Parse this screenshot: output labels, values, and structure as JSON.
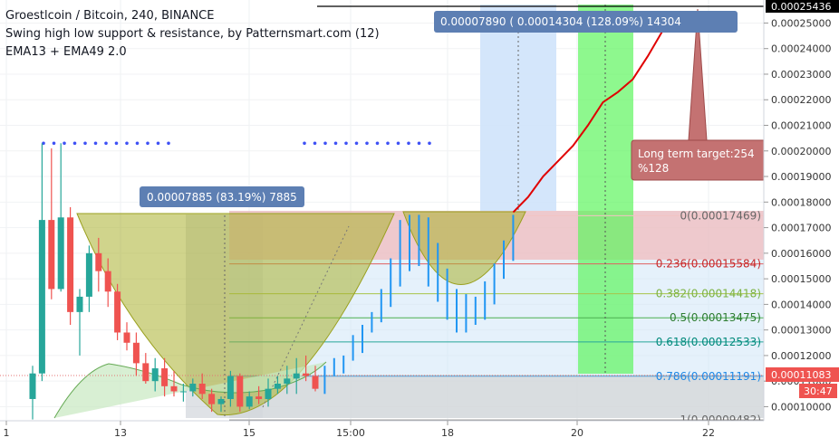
{
  "legend": {
    "line1": "Groestlcoin / Bitcoin, 240, BINANCE",
    "line2": "Swing high low support & resistance, by Patternsmart.com (12)",
    "line3": "EMA13 + EMA49 2.0"
  },
  "colors": {
    "up": "#26a69a",
    "down": "#ef5350",
    "rise": "#2196f3",
    "target": "#e00000",
    "dots": "#3f51f5",
    "fib_top": "#f3c3c3",
    "fib_236": "#e06060",
    "fib_382": "#a8c44a",
    "fib_5": "#4caf50",
    "fib_618": "#26a69a",
    "fib_786": "#4aa3df",
    "fib_1": "#888888",
    "cup": "#a2a82a",
    "green_box": "#5ef55e",
    "target_box": "#c47272"
  },
  "annotations": {
    "measure_left": "0.00007885 (83.19%) 7885",
    "measure_right": "0.00007890 (  0.00014304 (128.09%) 14304",
    "target_line1": "Long term target:254",
    "target_line2": "%128",
    "price_top_label": "0.00025436",
    "price_last_label": "0.00011083",
    "countdown_label": "30:47"
  },
  "chart_data": {
    "type": "candlestick",
    "title": "Groestlcoin / Bitcoin, 240, BINANCE",
    "ylim": [
      9.45e-05,
      0.000259
    ],
    "y_ticks": [
      0.0001,
      0.00011,
      0.00012,
      0.00013,
      0.00014,
      0.00015,
      0.00016,
      0.00017,
      0.00018,
      0.00019,
      0.0002,
      0.00021,
      0.00022,
      0.00023,
      0.00024,
      0.00025
    ],
    "x_ticks": [
      "1",
      "13",
      "15",
      "15:00",
      "18",
      "20",
      "22"
    ],
    "candles": [
      {
        "o": 0.000103,
        "h": 0.000116,
        "l": 9.5e-05,
        "c": 0.000113
      },
      {
        "o": 0.000113,
        "h": 0.000203,
        "l": 0.00011,
        "c": 0.000173
      },
      {
        "o": 0.000173,
        "h": 0.000201,
        "l": 0.000142,
        "c": 0.000146
      },
      {
        "o": 0.000146,
        "h": 0.000203,
        "l": 0.000145,
        "c": 0.000174
      },
      {
        "o": 0.000174,
        "h": 0.000178,
        "l": 0.000132,
        "c": 0.000137
      },
      {
        "o": 0.000137,
        "h": 0.000146,
        "l": 0.00012,
        "c": 0.000143
      },
      {
        "o": 0.000143,
        "h": 0.000163,
        "l": 0.000137,
        "c": 0.00016
      },
      {
        "o": 0.00016,
        "h": 0.000166,
        "l": 0.000145,
        "c": 0.000153
      },
      {
        "o": 0.000153,
        "h": 0.000158,
        "l": 0.000139,
        "c": 0.000145
      },
      {
        "o": 0.000145,
        "h": 0.000148,
        "l": 0.000126,
        "c": 0.000129
      },
      {
        "o": 0.000129,
        "h": 0.000133,
        "l": 0.000122,
        "c": 0.000125
      },
      {
        "o": 0.000125,
        "h": 0.000129,
        "l": 0.000112,
        "c": 0.000117
      },
      {
        "o": 0.000117,
        "h": 0.000121,
        "l": 0.000109,
        "c": 0.00011
      },
      {
        "o": 0.00011,
        "h": 0.000119,
        "l": 0.000106,
        "c": 0.000115
      },
      {
        "o": 0.000115,
        "h": 0.000119,
        "l": 0.000104,
        "c": 0.000108
      },
      {
        "o": 0.000108,
        "h": 0.000114,
        "l": 0.000104,
        "c": 0.000106
      },
      {
        "o": 0.000106,
        "h": 0.000109,
        "l": 0.000102,
        "c": 0.000106
      },
      {
        "o": 0.000106,
        "h": 0.000111,
        "l": 0.000104,
        "c": 0.000109
      },
      {
        "o": 0.000109,
        "h": 0.000113,
        "l": 0.000103,
        "c": 0.000105
      },
      {
        "o": 0.000105,
        "h": 0.000107,
        "l": 9.8e-05,
        "c": 0.000101
      },
      {
        "o": 0.000101,
        "h": 0.000104,
        "l": 9.8e-05,
        "c": 0.000103
      },
      {
        "o": 0.000103,
        "h": 0.000114,
        "l": 0.0001,
        "c": 0.000112
      },
      {
        "o": 0.000112,
        "h": 0.000113,
        "l": 9.8e-05,
        "c": 0.0001
      },
      {
        "o": 0.0001,
        "h": 0.000106,
        "l": 9.9e-05,
        "c": 0.000104
      },
      {
        "o": 0.000104,
        "h": 0.000108,
        "l": 0.000101,
        "c": 0.000103
      },
      {
        "o": 0.000103,
        "h": 0.000111,
        "l": 0.0001,
        "c": 0.000107
      },
      {
        "o": 0.000107,
        "h": 0.000112,
        "l": 0.000105,
        "c": 0.000109
      },
      {
        "o": 0.000109,
        "h": 0.000116,
        "l": 0.000105,
        "c": 0.000111
      },
      {
        "o": 0.000111,
        "h": 0.000119,
        "l": 0.000105,
        "c": 0.000113
      },
      {
        "o": 0.000113,
        "h": 0.00012,
        "l": 0.00011,
        "c": 0.000112
      },
      {
        "o": 0.000112,
        "h": 0.000116,
        "l": 0.000106,
        "c": 0.000107
      }
    ],
    "rise_bars": [
      {
        "x": "t32",
        "low": 0.000105,
        "high": 0.000116
      },
      {
        "x": "t33",
        "low": 0.000112,
        "high": 0.000119
      },
      {
        "x": "t34",
        "low": 0.000113,
        "high": 0.00012
      },
      {
        "x": "t35",
        "low": 0.000118,
        "high": 0.000128
      },
      {
        "x": "t36",
        "low": 0.000121,
        "high": 0.000132
      },
      {
        "x": "t37",
        "low": 0.000129,
        "high": 0.000137
      },
      {
        "x": "t38",
        "low": 0.000133,
        "high": 0.000146
      },
      {
        "x": "t39",
        "low": 0.000139,
        "high": 0.000158
      },
      {
        "x": "t40",
        "low": 0.000147,
        "high": 0.000173
      },
      {
        "x": "t41",
        "low": 0.000153,
        "high": 0.000175
      },
      {
        "x": "t42",
        "low": 0.000155,
        "high": 0.000175
      },
      {
        "x": "t43",
        "low": 0.000147,
        "high": 0.000174
      },
      {
        "x": "t44",
        "low": 0.000141,
        "high": 0.000164
      },
      {
        "x": "t45",
        "low": 0.000134,
        "high": 0.000154
      },
      {
        "x": "t46",
        "low": 0.000129,
        "high": 0.000146
      },
      {
        "x": "t47",
        "low": 0.000129,
        "high": 0.000144
      },
      {
        "x": "t48",
        "low": 0.000132,
        "high": 0.000143
      },
      {
        "x": "t49",
        "low": 0.000134,
        "high": 0.000149
      },
      {
        "x": "t50",
        "low": 0.00014,
        "high": 0.000156
      },
      {
        "x": "t51",
        "low": 0.00015,
        "high": 0.000165
      },
      {
        "x": "t52",
        "low": 0.000157,
        "high": 0.000175
      }
    ],
    "fib_levels": [
      {
        "label": "0(0.00017469)",
        "value": 0.00017469
      },
      {
        "label": "0.236(0.00015584)",
        "value": 0.00015584
      },
      {
        "label": "0.382(0.00014418)",
        "value": 0.00014418
      },
      {
        "label": "0.5(0.00013475)",
        "value": 0.00013475
      },
      {
        "label": "0.618(0.00012533)",
        "value": 0.00012533
      },
      {
        "label": "0.786(0.00011191)",
        "value": 0.00011191
      },
      {
        "label": "1(0.00009482)",
        "value": 9.482e-05
      }
    ],
    "target_path": [
      {
        "x": "t52",
        "y": 0.000176
      },
      {
        "x": "t53",
        "y": 0.000182
      },
      {
        "x": "t54",
        "y": 0.00019
      },
      {
        "x": "t55",
        "y": 0.000196
      },
      {
        "x": "t56",
        "y": 0.000202
      },
      {
        "x": "t57",
        "y": 0.00021
      },
      {
        "x": "t58",
        "y": 0.000219
      },
      {
        "x": "t59",
        "y": 0.000223
      },
      {
        "x": "t60",
        "y": 0.000228
      },
      {
        "x": "t61",
        "y": 0.000237
      },
      {
        "x": "t62",
        "y": 0.000247
      },
      {
        "x": "t63",
        "y": 0.000254
      }
    ],
    "resistance_dots_level": 0.000203,
    "price_top": 0.00025436,
    "price_last": 0.00011083
  }
}
